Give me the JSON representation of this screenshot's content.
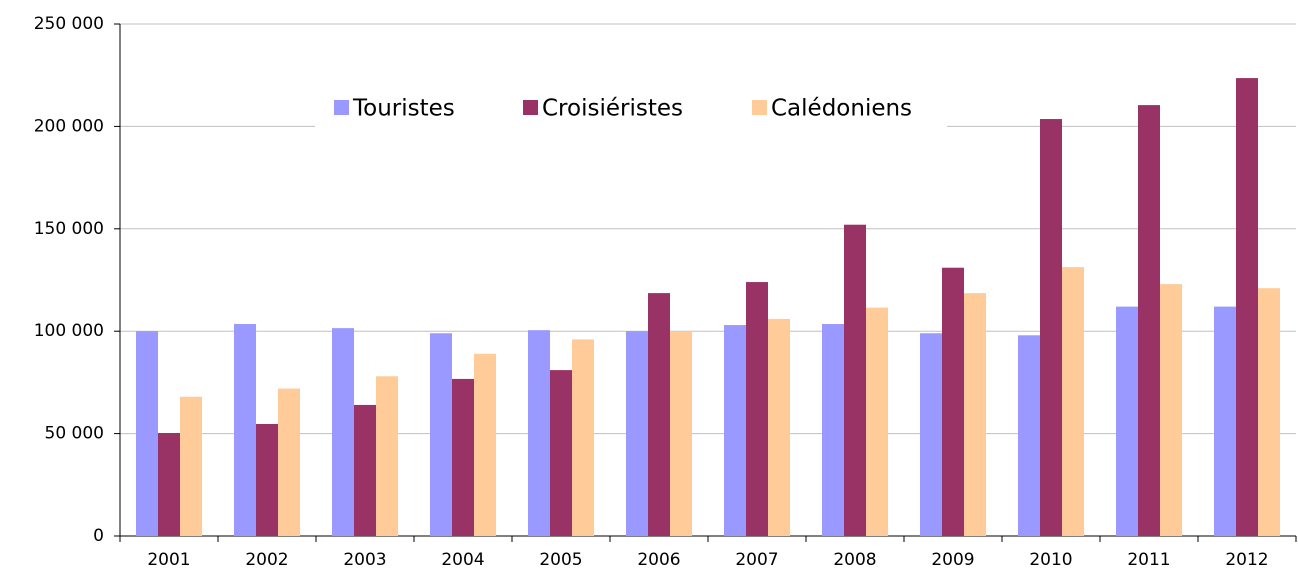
{
  "chart_data": {
    "type": "bar",
    "categories": [
      "2001",
      "2002",
      "2003",
      "2004",
      "2005",
      "2006",
      "2007",
      "2008",
      "2009",
      "2010",
      "2011",
      "2012"
    ],
    "series": [
      {
        "name": "Touristes",
        "color": "#9999ff",
        "values": [
          100000,
          103500,
          101500,
          99000,
          100500,
          100000,
          103000,
          103500,
          99000,
          98000,
          112000,
          112000
        ]
      },
      {
        "name": "Croisiéristes",
        "color": "#993366",
        "values": [
          50300,
          54700,
          64000,
          76700,
          81000,
          118600,
          124000,
          152000,
          131000,
          203600,
          210400,
          223600
        ]
      },
      {
        "name": "Calédoniens",
        "color": "#ffcc99",
        "values": [
          68000,
          72000,
          78000,
          89000,
          96000,
          100000,
          106000,
          111500,
          118600,
          131300,
          123000,
          121000
        ]
      }
    ],
    "ylim": [
      0,
      250000
    ],
    "yticks": [
      0,
      {
        "value": 50000,
        "label": "50 000"
      },
      {
        "value": 100000,
        "label": "100 000"
      },
      {
        "value": 150000,
        "label": "150 000"
      },
      {
        "value": 200000,
        "label": "200 000"
      },
      {
        "value": 250000,
        "label": "250 000"
      }
    ],
    "grid": true,
    "legend": "top"
  }
}
